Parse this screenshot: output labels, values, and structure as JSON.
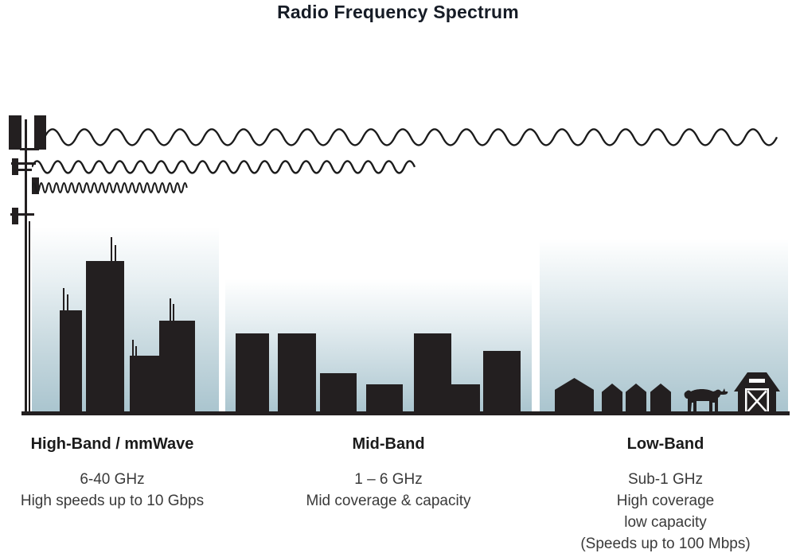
{
  "title": "Radio Frequency Spectrum",
  "bands": [
    {
      "heading": "High-Band / mmWave",
      "lines": [
        "6-40 GHz",
        "High speeds up to 10 Gbps"
      ],
      "illustration": "city-skyscrapers-with-antennas",
      "wave": "short-wavelength-short-range"
    },
    {
      "heading": "Mid-Band",
      "lines": [
        "1 – 6 GHz",
        "Mid coverage & capacity"
      ],
      "illustration": "mid-rise-town-buildings",
      "wave": "medium-wavelength-medium-range"
    },
    {
      "heading": "Low-Band",
      "lines": [
        "Sub-1 GHz",
        "High coverage",
        "low capacity",
        "(Speeds up to 100 Mbps)"
      ],
      "illustration": "rural-houses-cow-barn",
      "wave": "long-wavelength-full-width-range"
    }
  ],
  "scene": {
    "tower_icon": "cell-tower-icon",
    "waves": [
      {
        "name": "long-wavelength-wave",
        "reach": "full width"
      },
      {
        "name": "medium-wavelength-wave",
        "reach": "medium"
      },
      {
        "name": "short-wavelength-wave",
        "reach": "short"
      }
    ]
  },
  "colors": {
    "silhouette": "#231f20",
    "sky_gradient_bottom": "#aac5cf",
    "title_text": "#161c26",
    "body_text": "#3a3a3a"
  }
}
